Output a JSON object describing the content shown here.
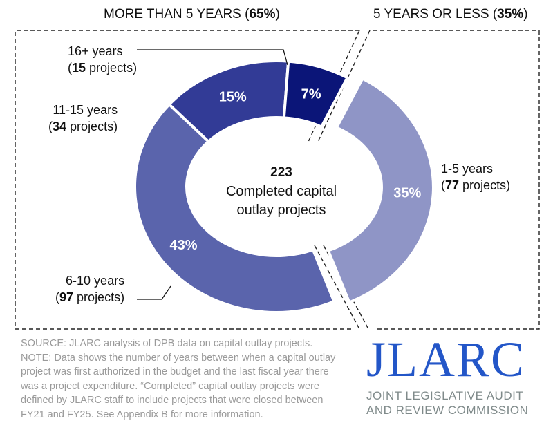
{
  "chart_data": {
    "type": "pie",
    "variant": "donut",
    "center_total": "223",
    "center_label_lines": [
      "Completed capital",
      "outlay projects"
    ],
    "groups": [
      {
        "label": "MORE THAN 5 YEARS",
        "pct": "65%"
      },
      {
        "label": "5 YEARS OR LESS",
        "pct": "35%"
      }
    ],
    "slices": [
      {
        "name": "1-5 years",
        "projects": 77,
        "count_text": "77",
        "value": 35,
        "pct_label": "35%",
        "color": "#8f95c6",
        "exploded": true
      },
      {
        "name": "6-10 years",
        "projects": 97,
        "count_text": "97",
        "value": 43,
        "pct_label": "43%",
        "color": "#5a64ac"
      },
      {
        "name": "11-15 years",
        "projects": 34,
        "count_text": "34",
        "value": 15,
        "pct_label": "15%",
        "color": "#323b96"
      },
      {
        "name": "16+ years",
        "projects": 15,
        "count_text": "15",
        "value": 7,
        "pct_label": "7%",
        "color": "#0b1578"
      }
    ],
    "projects_word": "projects"
  },
  "notes": {
    "source": "SOURCE: JLARC analysis of DPB data on capital outlay projects.",
    "note": "NOTE: Data shows the number of years between when a capital outlay project was first authorized in the budget and the last fiscal year there was a project expenditure. “Completed” capital outlay projects were defined by JLARC staff to include projects that were closed between FY21 and FY25. See Appendix B for more information."
  },
  "logo": {
    "main": "JLARC",
    "sub1": "JOINT LEGISLATIVE AUDIT",
    "sub2": "AND REVIEW COMMISSION"
  }
}
